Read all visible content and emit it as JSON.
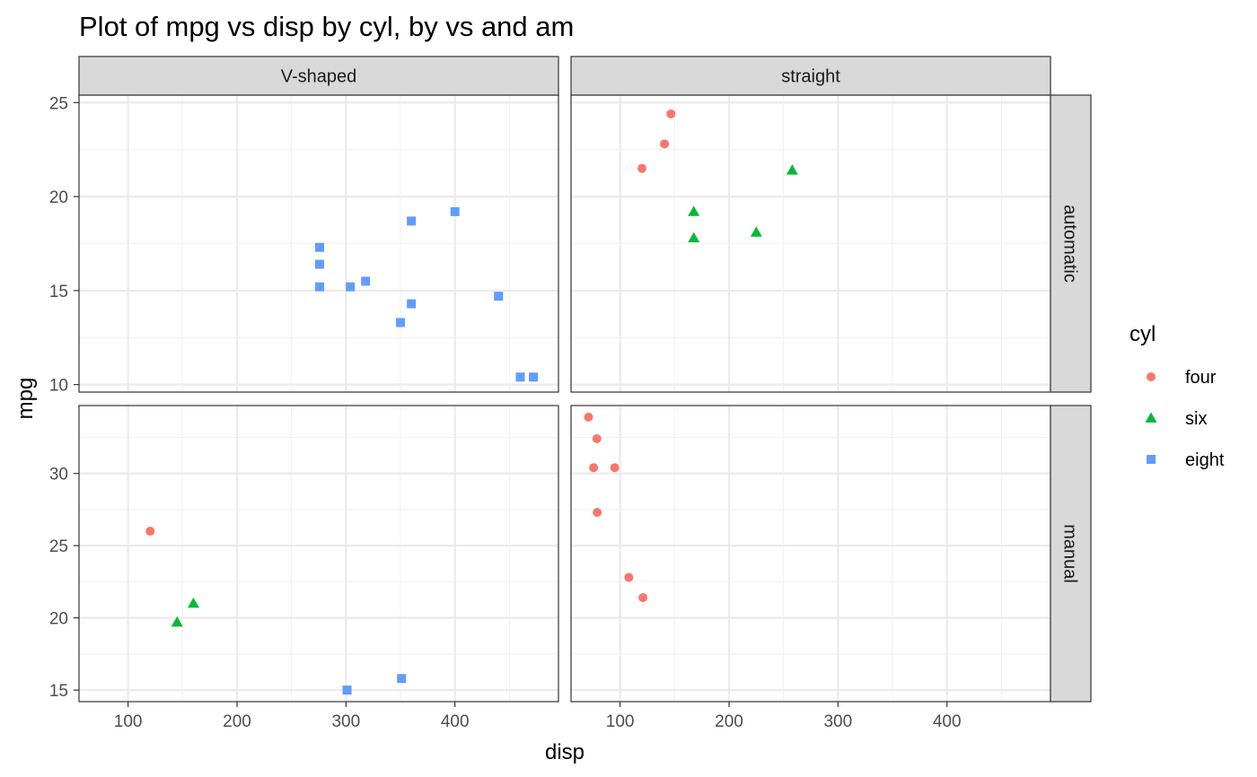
{
  "chart_data": {
    "type": "scatter",
    "title": "Plot of mpg vs disp by cyl, by vs and am",
    "xlabel": "disp",
    "ylabel": "mpg",
    "grid": true,
    "legend_position": "right",
    "legend": {
      "title": "cyl",
      "entries": [
        {
          "label": "four",
          "color": "#F8766D",
          "shape": "circle"
        },
        {
          "label": "six",
          "color": "#00BA38",
          "shape": "triangle"
        },
        {
          "label": "eight",
          "color": "#619CFF",
          "shape": "square"
        }
      ]
    },
    "facets": {
      "columns": [
        "V-shaped",
        "straight"
      ],
      "rows": [
        "automatic",
        "manual"
      ]
    },
    "x_axis": {
      "ticks": [
        100,
        200,
        300,
        400
      ],
      "range": [
        55,
        495
      ]
    },
    "row_axes": [
      {
        "ticks": [
          10,
          15,
          20,
          25
        ],
        "range": [
          9.6,
          25.4
        ]
      },
      {
        "ticks": [
          15,
          20,
          25,
          30
        ],
        "range": [
          14.2,
          34.7
        ]
      }
    ],
    "panels": [
      {
        "col": "V-shaped",
        "row": "automatic",
        "points": [
          {
            "cyl": "eight",
            "disp": 360,
            "mpg": 18.7
          },
          {
            "cyl": "eight",
            "disp": 360,
            "mpg": 14.3
          },
          {
            "cyl": "eight",
            "disp": 275.8,
            "mpg": 16.4
          },
          {
            "cyl": "eight",
            "disp": 275.8,
            "mpg": 17.3
          },
          {
            "cyl": "eight",
            "disp": 275.8,
            "mpg": 15.2
          },
          {
            "cyl": "eight",
            "disp": 472,
            "mpg": 10.4
          },
          {
            "cyl": "eight",
            "disp": 460,
            "mpg": 10.4
          },
          {
            "cyl": "eight",
            "disp": 440,
            "mpg": 14.7
          },
          {
            "cyl": "eight",
            "disp": 318,
            "mpg": 15.5
          },
          {
            "cyl": "eight",
            "disp": 304,
            "mpg": 15.2
          },
          {
            "cyl": "eight",
            "disp": 350,
            "mpg": 13.3
          },
          {
            "cyl": "eight",
            "disp": 400,
            "mpg": 19.2
          }
        ]
      },
      {
        "col": "straight",
        "row": "automatic",
        "points": [
          {
            "cyl": "four",
            "disp": 146.7,
            "mpg": 24.4
          },
          {
            "cyl": "four",
            "disp": 140.8,
            "mpg": 22.8
          },
          {
            "cyl": "four",
            "disp": 120.1,
            "mpg": 21.5
          },
          {
            "cyl": "six",
            "disp": 258,
            "mpg": 21.4
          },
          {
            "cyl": "six",
            "disp": 225,
            "mpg": 18.1
          },
          {
            "cyl": "six",
            "disp": 167.6,
            "mpg": 19.2
          },
          {
            "cyl": "six",
            "disp": 167.6,
            "mpg": 17.8
          }
        ]
      },
      {
        "col": "V-shaped",
        "row": "manual",
        "points": [
          {
            "cyl": "four",
            "disp": 120.3,
            "mpg": 26.0
          },
          {
            "cyl": "six",
            "disp": 160,
            "mpg": 21.0
          },
          {
            "cyl": "six",
            "disp": 145,
            "mpg": 19.7
          },
          {
            "cyl": "eight",
            "disp": 351,
            "mpg": 15.8
          },
          {
            "cyl": "eight",
            "disp": 301,
            "mpg": 15.0
          }
        ]
      },
      {
        "col": "straight",
        "row": "manual",
        "points": [
          {
            "cyl": "four",
            "disp": 71.1,
            "mpg": 33.9
          },
          {
            "cyl": "four",
            "disp": 78.7,
            "mpg": 32.4
          },
          {
            "cyl": "four",
            "disp": 75.7,
            "mpg": 30.4
          },
          {
            "cyl": "four",
            "disp": 95.1,
            "mpg": 30.4
          },
          {
            "cyl": "four",
            "disp": 79,
            "mpg": 27.3
          },
          {
            "cyl": "four",
            "disp": 108,
            "mpg": 22.8
          },
          {
            "cyl": "four",
            "disp": 121,
            "mpg": 21.4
          }
        ]
      }
    ]
  }
}
